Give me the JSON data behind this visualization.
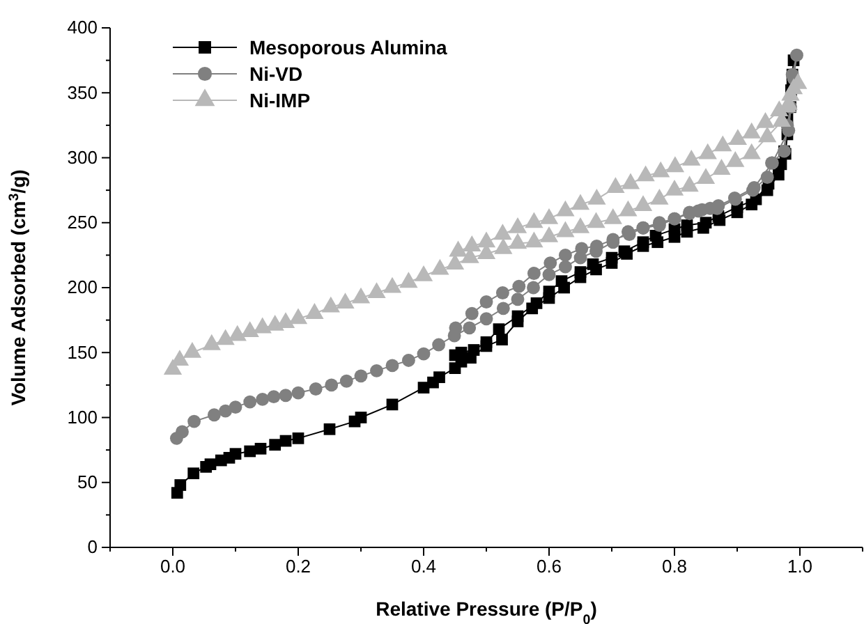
{
  "chart_data": {
    "type": "line",
    "xlabel": "Relative Pressure (P/P$_{0}$)",
    "ylabel": "Volume Adsorbed (cm$^{3}$/g)",
    "xlim": [
      -0.1,
      1.1
    ],
    "ylim": [
      0,
      400
    ],
    "xticks": [
      {
        "value": -0.1,
        "label": null
      },
      {
        "value": 0,
        "label": "0.0"
      },
      {
        "value": 0.1,
        "label": null
      },
      {
        "value": 0.2,
        "label": "0.2"
      },
      {
        "value": 0.3,
        "label": null
      },
      {
        "value": 0.4,
        "label": "0.4"
      },
      {
        "value": 0.5,
        "label": null
      },
      {
        "value": 0.6,
        "label": "0.6"
      },
      {
        "value": 0.7,
        "label": null
      },
      {
        "value": 0.8,
        "label": "0.8"
      },
      {
        "value": 0.9,
        "label": null
      },
      {
        "value": 1.0,
        "label": "1.0"
      },
      {
        "value": 1.1,
        "label": null
      }
    ],
    "yticks": [
      0,
      {
        "value": 25,
        "label": null
      },
      50,
      {
        "value": 75,
        "label": null
      },
      100,
      {
        "value": 125,
        "label": null
      },
      150,
      {
        "value": 175,
        "label": null
      },
      200,
      {
        "value": 225,
        "label": null
      },
      250,
      {
        "value": 275,
        "label": null
      },
      300,
      {
        "value": 325,
        "label": null
      },
      350,
      {
        "value": 375,
        "label": null
      },
      400
    ],
    "legend": "top left",
    "grid": false,
    "series": [
      {
        "name": "Mesoporous Alumina",
        "color": "#000000",
        "marker": "square",
        "x": [
          0.007,
          0.012,
          0.033,
          0.053,
          0.06,
          0.077,
          0.09,
          0.1,
          0.123,
          0.14,
          0.163,
          0.18,
          0.2,
          0.25,
          0.29,
          0.3,
          0.35,
          0.4,
          0.415,
          0.425,
          0.45,
          0.46,
          0.475,
          0.5,
          0.525,
          0.55,
          0.573,
          0.6,
          0.624,
          0.65,
          0.675,
          0.7,
          0.724,
          0.75,
          0.773,
          0.8,
          0.82,
          0.846,
          0.872,
          0.9,
          0.923,
          0.948,
          0.966,
          0.977,
          0.98,
          0.985,
          0.986,
          0.988,
          0.99,
          0.988,
          0.98,
          0.975,
          0.97,
          0.95,
          0.93,
          0.9,
          0.87,
          0.85,
          0.82,
          0.8,
          0.77,
          0.75,
          0.72,
          0.7,
          0.67,
          0.65,
          0.62,
          0.6,
          0.58,
          0.55,
          0.52,
          0.5,
          0.48,
          0.46,
          0.45
        ],
        "values": [
          42,
          48,
          57,
          62,
          64,
          67,
          69,
          72,
          74,
          76,
          79,
          82,
          84,
          91,
          97,
          100,
          110,
          123,
          127,
          131,
          138,
          143,
          146,
          155,
          160,
          174,
          184,
          192,
          200,
          208,
          214,
          219,
          226,
          232,
          235,
          239,
          243,
          246,
          252,
          258,
          264,
          275,
          287,
          303,
          318,
          339,
          352,
          364,
          375,
          360,
          330,
          305,
          295,
          280,
          268,
          262,
          255,
          250,
          248,
          245,
          240,
          235,
          228,
          223,
          218,
          212,
          205,
          197,
          188,
          178,
          168,
          158,
          152,
          150,
          148
        ]
      },
      {
        "name": "Ni-VD",
        "color": "#808080",
        "marker": "circle",
        "x": [
          0.006,
          0.015,
          0.034,
          0.066,
          0.084,
          0.1,
          0.123,
          0.143,
          0.161,
          0.18,
          0.2,
          0.228,
          0.253,
          0.277,
          0.3,
          0.325,
          0.35,
          0.376,
          0.4,
          0.424,
          0.449,
          0.473,
          0.5,
          0.527,
          0.55,
          0.575,
          0.6,
          0.626,
          0.65,
          0.675,
          0.702,
          0.726,
          0.75,
          0.776,
          0.8,
          0.824,
          0.844,
          0.868,
          0.897,
          0.925,
          0.948,
          0.955,
          0.975,
          0.98,
          0.985,
          0.988,
          0.995,
          0.99,
          0.982,
          0.956,
          0.927,
          0.896,
          0.87,
          0.857,
          0.838,
          0.824,
          0.8,
          0.776,
          0.75,
          0.728,
          0.702,
          0.676,
          0.652,
          0.626,
          0.602,
          0.576,
          0.552,
          0.526,
          0.5,
          0.477,
          0.451
        ],
        "values": [
          84,
          89,
          97,
          102,
          105,
          108,
          112,
          114,
          116,
          117,
          119,
          122,
          125,
          128,
          132,
          136,
          140,
          144,
          149,
          156,
          163,
          169,
          176,
          184,
          191,
          200,
          210,
          216,
          223,
          228,
          235,
          243,
          246,
          250,
          253,
          257,
          260,
          261,
          268,
          275,
          285,
          296,
          305,
          325,
          339,
          364,
          379,
          361,
          321,
          296,
          277,
          269,
          263,
          261,
          259,
          258,
          253,
          248,
          246,
          241,
          237,
          232,
          230,
          225,
          219,
          211,
          201,
          196,
          189,
          180,
          169
        ]
      },
      {
        "name": "Ni-IMP",
        "color": "#b8b8b8",
        "marker": "triangle",
        "x": [
          0.0,
          0.011,
          0.031,
          0.062,
          0.084,
          0.103,
          0.123,
          0.143,
          0.163,
          0.18,
          0.2,
          0.226,
          0.252,
          0.275,
          0.3,
          0.325,
          0.35,
          0.376,
          0.4,
          0.426,
          0.45,
          0.474,
          0.5,
          0.527,
          0.55,
          0.576,
          0.6,
          0.626,
          0.65,
          0.675,
          0.702,
          0.726,
          0.75,
          0.776,
          0.8,
          0.824,
          0.85,
          0.875,
          0.897,
          0.923,
          0.948,
          0.971,
          0.98,
          0.985,
          0.99,
          0.997,
          0.982,
          0.967,
          0.945,
          0.923,
          0.901,
          0.877,
          0.853,
          0.827,
          0.801,
          0.778,
          0.754,
          0.73,
          0.706,
          0.676,
          0.65,
          0.626,
          0.6,
          0.576,
          0.55,
          0.526,
          0.5,
          0.477,
          0.455
        ],
        "values": [
          137,
          144,
          150,
          156,
          160,
          163,
          166,
          169,
          171,
          173,
          176,
          180,
          185,
          188,
          192,
          196,
          200,
          204,
          209,
          214,
          218,
          223,
          226,
          230,
          234,
          235,
          239,
          243,
          246,
          250,
          253,
          259,
          263,
          268,
          275,
          278,
          284,
          291,
          297,
          303,
          316,
          328,
          339,
          348,
          353,
          357,
          341,
          336,
          327,
          319,
          314,
          309,
          303,
          298,
          293,
          289,
          286,
          280,
          277,
          268,
          264,
          259,
          253,
          250,
          246,
          241,
          235,
          232,
          228
        ]
      }
    ]
  }
}
